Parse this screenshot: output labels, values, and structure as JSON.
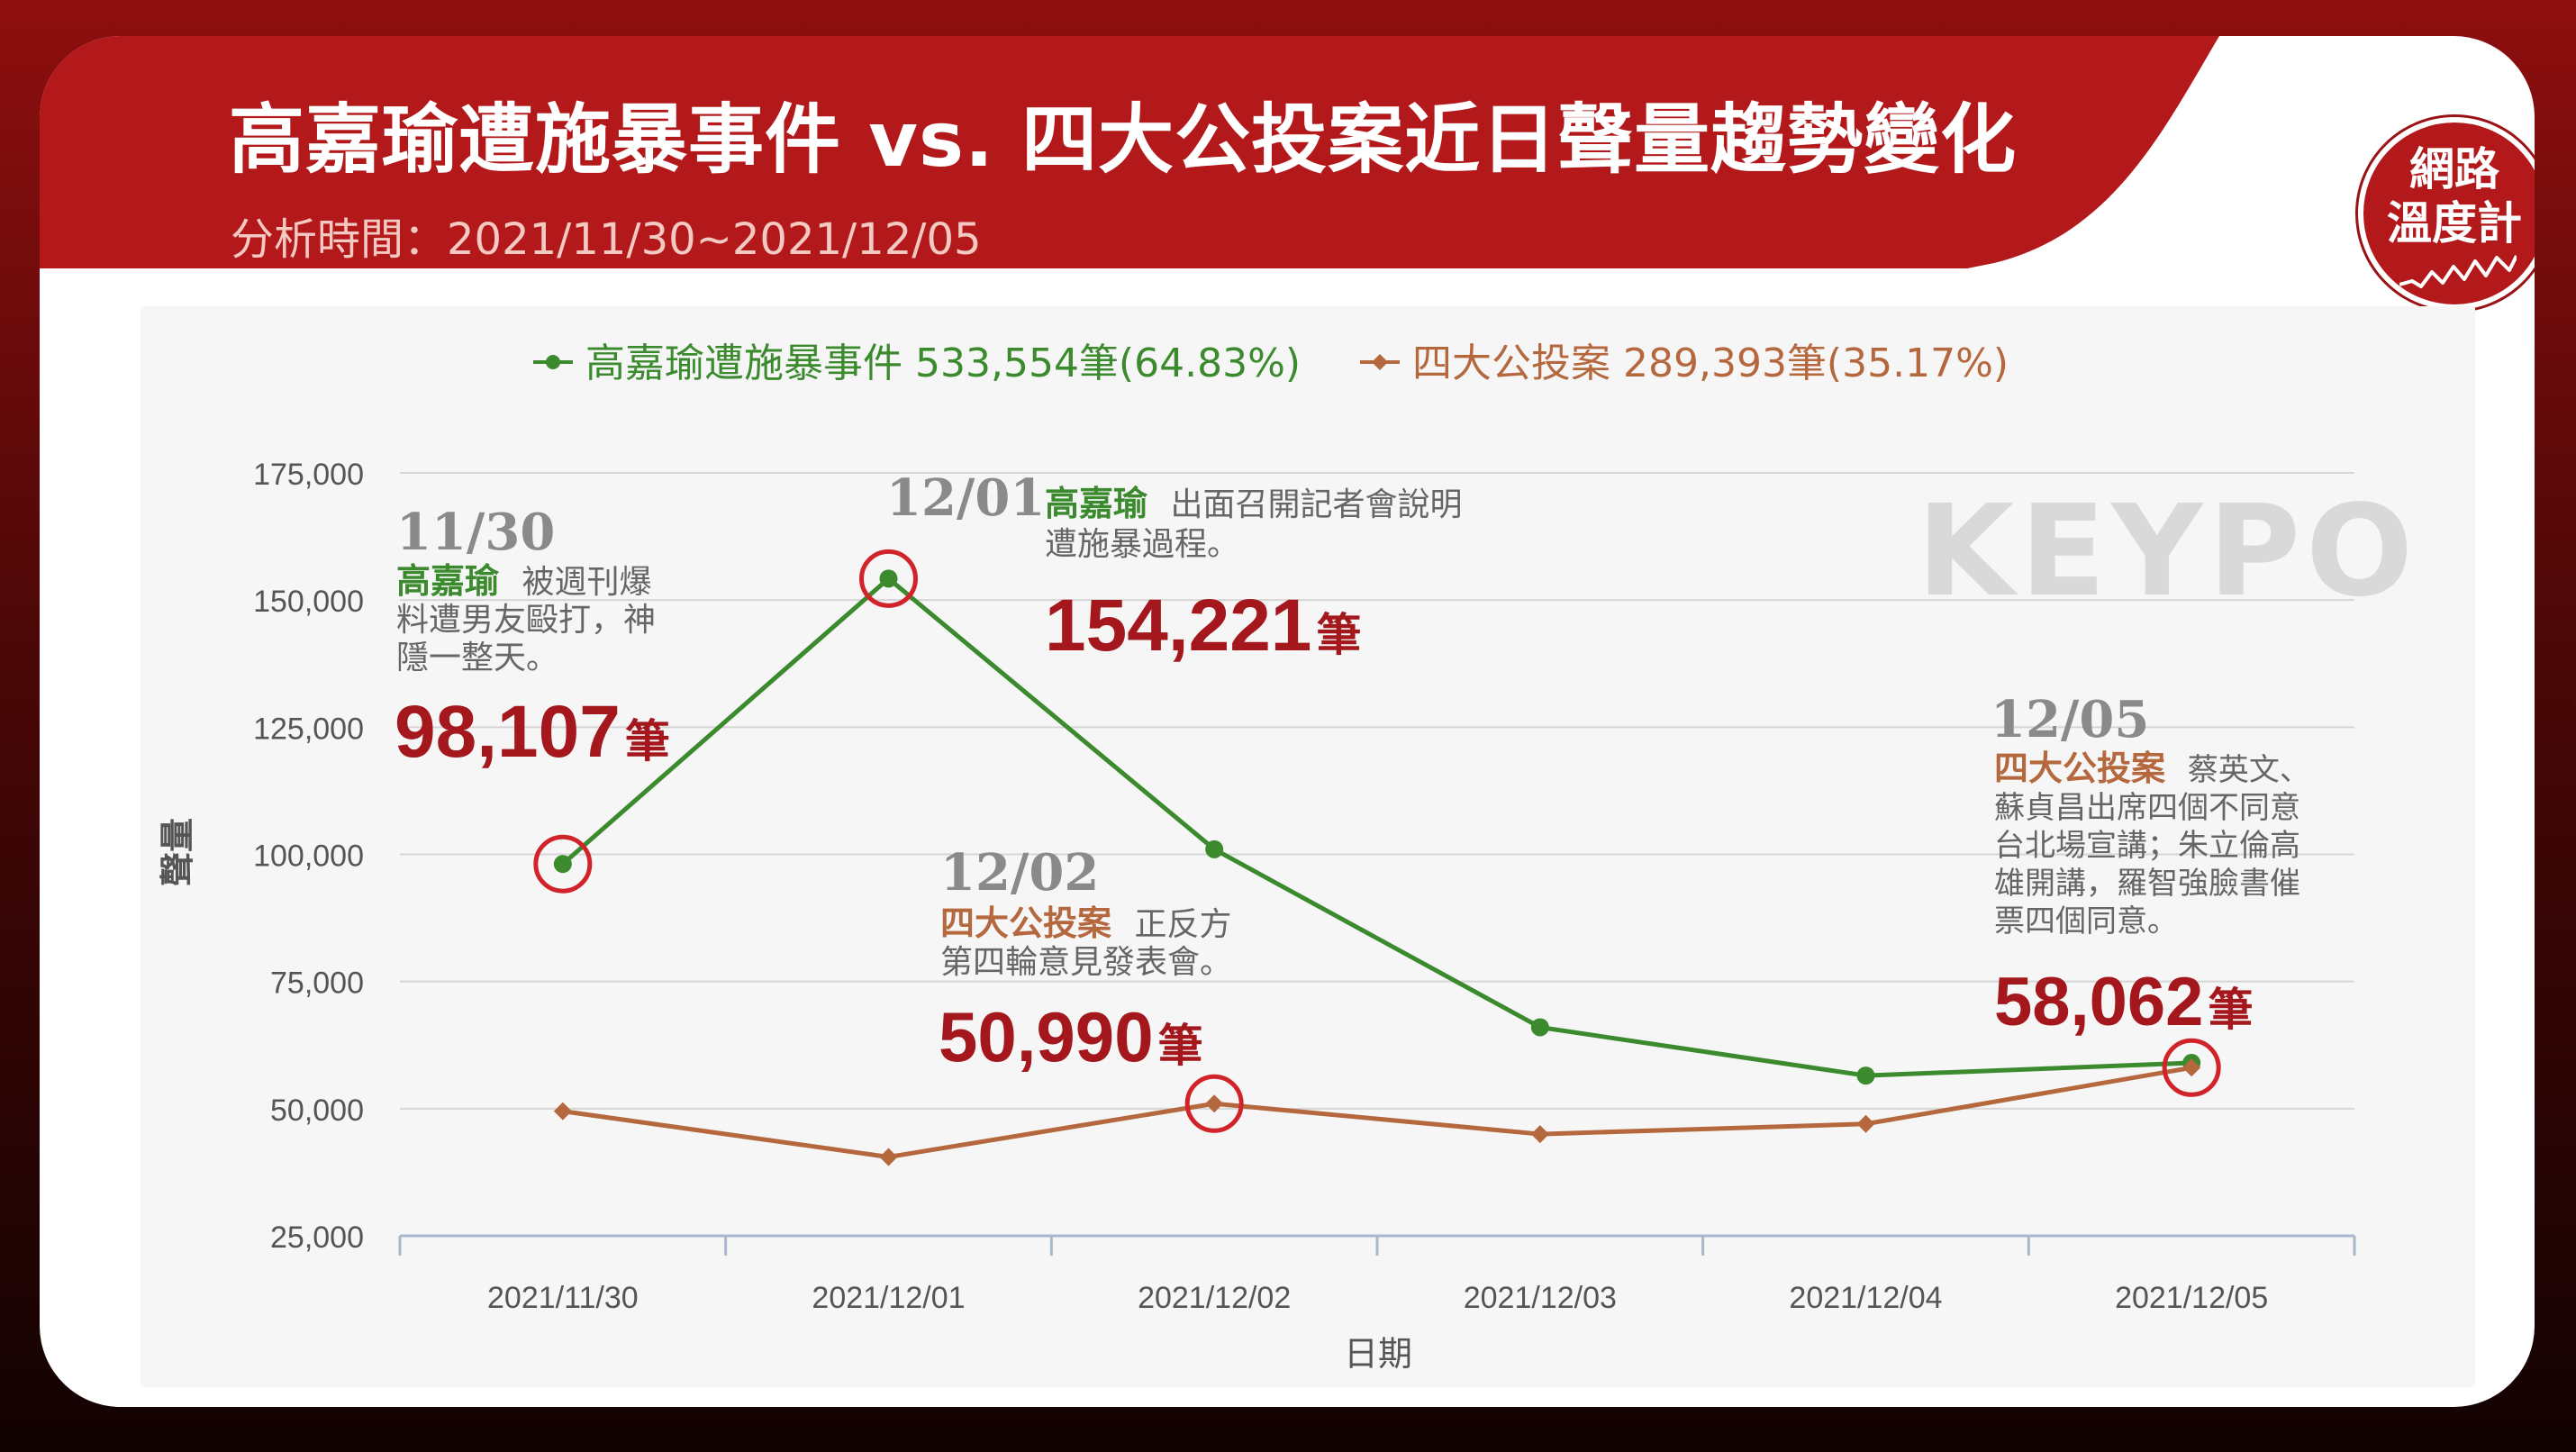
{
  "header": {
    "title": "高嘉瑜遭施暴事件 vs. 四大公投案近日聲量趨勢變化",
    "subtitle": "分析時間：2021/11/30~2021/12/05"
  },
  "logo": {
    "line1": "網路",
    "line2": "溫度計"
  },
  "watermark": "KEYPO",
  "colors": {
    "brand_red": "#b3191b",
    "series_green": "#3b8a2e",
    "series_brown": "#b5683d",
    "highlight_red": "#a3171d",
    "circle_red": "#d1242a"
  },
  "chart_data": {
    "type": "line",
    "x": [
      "2021/11/30",
      "2021/12/01",
      "2021/12/02",
      "2021/12/03",
      "2021/12/04",
      "2021/12/05"
    ],
    "series": [
      {
        "name": "高嘉瑜遭施暴事件",
        "legend_label": "高嘉瑜遭施暴事件 533,554筆(64.83%)",
        "color": "#3b8a2e",
        "marker": "circle",
        "values": [
          98107,
          154221,
          101000,
          66000,
          56500,
          59000
        ]
      },
      {
        "name": "四大公投案",
        "legend_label": "四大公投案 289,393筆(35.17%)",
        "color": "#b5683d",
        "marker": "diamond",
        "values": [
          49500,
          40500,
          50990,
          45000,
          47000,
          58062
        ]
      }
    ],
    "xlabel": "日期",
    "ylabel": "聲量",
    "ylim": [
      25000,
      175000
    ],
    "yticks": [
      25000,
      50000,
      75000,
      100000,
      125000,
      150000,
      175000
    ],
    "ytick_labels": [
      "25,000",
      "50,000",
      "75,000",
      "100,000",
      "125,000",
      "150,000",
      "175,000"
    ],
    "grid": true,
    "legend_position": "top-center",
    "annotations": [
      {
        "date": "11/30",
        "subject": "高嘉瑜",
        "subject_color": "#3b8a2e",
        "text_lines": [
          "被週刊爆",
          "料遭男友毆打，神",
          "隱一整天。"
        ],
        "value_text": "98,107",
        "unit": "筆",
        "series": 0,
        "index": 0
      },
      {
        "date": "12/01",
        "subject": "高嘉瑜",
        "subject_color": "#3b8a2e",
        "text_lines": [
          "出面召開記者會說明",
          "遭施暴過程。"
        ],
        "value_text": "154,221",
        "unit": "筆",
        "series": 0,
        "index": 1
      },
      {
        "date": "12/02",
        "subject": "四大公投案",
        "subject_color": "#b5683d",
        "text_lines": [
          "正反方",
          "第四輪意見發表會。"
        ],
        "value_text": "50,990",
        "unit": "筆",
        "series": 1,
        "index": 2
      },
      {
        "date": "12/05",
        "subject": "四大公投案",
        "subject_color": "#b5683d",
        "text_lines": [
          "蔡英文、",
          "蘇貞昌出席四個不同意",
          "台北場宣講；朱立倫高",
          "雄開講，羅智強臉書催",
          "票四個同意。"
        ],
        "value_text": "58,062",
        "unit": "筆",
        "series": 1,
        "index": 5
      }
    ]
  }
}
